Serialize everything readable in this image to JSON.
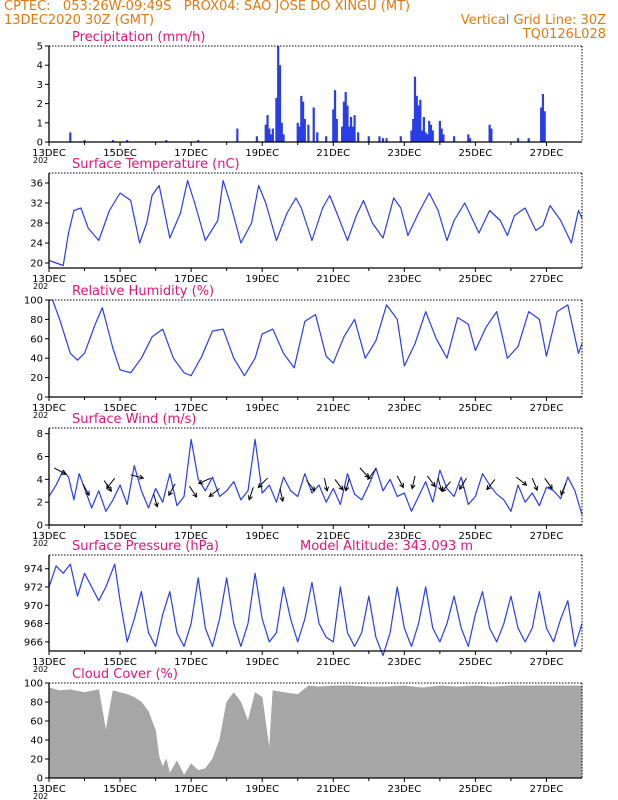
{
  "header": {
    "line1": "CPTEC:   053:26W-09:49S   PROX04: SAO JOSE DO XINGU (MT)",
    "line2_left": "13DEC2020 30Z (GMT)",
    "line2_right": "Vertical Grid Line: 30Z",
    "line3_right": "TQ0126L028"
  },
  "colors": {
    "header": "#e07a10",
    "panel_title": "#e0157a",
    "series": "#2a3ee8",
    "cloud": "#a6a6a6",
    "wind_arrow": "#000000"
  },
  "x_axis": {
    "range_days": [
      13,
      28
    ],
    "tick_labels": [
      "13DEC",
      "15DEC",
      "17DEC",
      "19DEC",
      "21DEC",
      "23DEC",
      "25DEC",
      "27DEC"
    ],
    "tick_days": [
      13,
      15,
      17,
      19,
      21,
      23,
      25,
      27
    ],
    "truncated_year": "202"
  },
  "chart_data": [
    {
      "type": "bar",
      "title": "Precipitation (mm/h)",
      "ylim": [
        0,
        5
      ],
      "yticks": [
        0,
        1,
        2,
        3,
        4,
        5
      ],
      "x": [
        13.6,
        14.0,
        14.8,
        15.2,
        16.3,
        17.2,
        18.3,
        18.85,
        19.1,
        19.15,
        19.2,
        19.25,
        19.3,
        19.4,
        19.45,
        19.5,
        19.55,
        19.6,
        20.0,
        20.05,
        20.1,
        20.15,
        20.2,
        20.3,
        20.45,
        20.55,
        20.8,
        21.0,
        21.05,
        21.1,
        21.25,
        21.3,
        21.35,
        21.4,
        21.45,
        21.5,
        21.55,
        21.6,
        21.7,
        22.0,
        22.3,
        22.4,
        22.5,
        22.9,
        23.2,
        23.25,
        23.3,
        23.35,
        23.4,
        23.45,
        23.5,
        23.55,
        23.6,
        23.65,
        23.7,
        23.75,
        23.8,
        24.0,
        24.05,
        24.1,
        24.4,
        24.8,
        24.85,
        25.4,
        25.45,
        26.2,
        26.5,
        26.85,
        26.9,
        26.95
      ],
      "values": [
        0.5,
        0.1,
        0.1,
        0.1,
        0.1,
        0.1,
        0.7,
        0.3,
        0.9,
        1.4,
        0.7,
        0.4,
        0.7,
        2.3,
        5.0,
        4.0,
        1.0,
        0.4,
        1.0,
        0.8,
        2.4,
        2.1,
        1.2,
        0.9,
        1.8,
        0.5,
        0.3,
        1.7,
        2.7,
        1.2,
        0.8,
        2.1,
        2.6,
        1.9,
        0.8,
        1.3,
        0.8,
        1.4,
        0.5,
        0.3,
        0.3,
        0.2,
        0.2,
        0.3,
        0.6,
        1.2,
        3.4,
        2.4,
        1.9,
        2.2,
        0.6,
        1.3,
        0.5,
        0.4,
        1.1,
        0.9,
        0.6,
        1.1,
        0.7,
        0.4,
        0.3,
        0.4,
        0.2,
        0.9,
        0.7,
        0.2,
        0.2,
        1.8,
        2.5,
        1.6
      ]
    },
    {
      "type": "line",
      "title": "Surface Temperature (nC)",
      "ylim": [
        19,
        38
      ],
      "yticks": [
        20,
        24,
        28,
        32,
        36
      ],
      "x": [
        13.0,
        13.2,
        13.4,
        13.55,
        13.7,
        13.9,
        14.1,
        14.4,
        14.7,
        15.0,
        15.3,
        15.55,
        15.75,
        15.9,
        16.1,
        16.4,
        16.7,
        16.9,
        17.1,
        17.4,
        17.75,
        17.9,
        18.1,
        18.4,
        18.7,
        18.9,
        19.1,
        19.4,
        19.7,
        19.95,
        20.1,
        20.4,
        20.7,
        20.9,
        21.1,
        21.4,
        21.65,
        21.85,
        22.1,
        22.4,
        22.7,
        22.9,
        23.1,
        23.4,
        23.7,
        23.95,
        24.2,
        24.4,
        24.7,
        24.9,
        25.1,
        25.4,
        25.7,
        25.9,
        26.1,
        26.4,
        26.7,
        26.9,
        27.1,
        27.4,
        27.7,
        27.9,
        28.0
      ],
      "values": [
        20.5,
        20.0,
        19.5,
        26.0,
        30.5,
        31.0,
        27.0,
        24.5,
        30.5,
        34.0,
        32.5,
        24.0,
        28.0,
        33.5,
        35.5,
        25.0,
        30.0,
        36.5,
        32.0,
        24.5,
        28.5,
        36.5,
        32.0,
        24.0,
        28.0,
        35.5,
        32.0,
        24.5,
        30.0,
        33.0,
        31.0,
        24.5,
        31.0,
        33.5,
        30.0,
        24.5,
        29.5,
        32.5,
        28.0,
        25.0,
        33.0,
        31.0,
        25.5,
        30.0,
        34.0,
        30.5,
        24.5,
        28.5,
        32.0,
        29.0,
        26.0,
        30.5,
        28.5,
        25.5,
        29.5,
        31.0,
        26.5,
        27.5,
        31.5,
        28.5,
        24.0,
        30.5,
        29.0
      ]
    },
    {
      "type": "line",
      "title": "Relative Humidity (%)",
      "ylim": [
        0,
        100
      ],
      "yticks": [
        0,
        20,
        40,
        60,
        80,
        100
      ],
      "x": [
        13.0,
        13.1,
        13.3,
        13.6,
        13.8,
        14.0,
        14.3,
        14.5,
        14.8,
        15.0,
        15.3,
        15.6,
        15.9,
        16.2,
        16.5,
        16.8,
        17.0,
        17.3,
        17.6,
        17.9,
        18.2,
        18.5,
        18.8,
        19.0,
        19.3,
        19.6,
        19.9,
        20.2,
        20.5,
        20.8,
        21.0,
        21.3,
        21.6,
        21.9,
        22.2,
        22.5,
        22.8,
        23.0,
        23.3,
        23.6,
        23.9,
        24.2,
        24.5,
        24.8,
        25.0,
        25.3,
        25.6,
        25.9,
        26.2,
        26.5,
        26.8,
        27.0,
        27.3,
        27.6,
        27.9,
        28.0
      ],
      "values": [
        100,
        100,
        80,
        45,
        38,
        45,
        75,
        92,
        50,
        28,
        25,
        40,
        62,
        70,
        40,
        25,
        22,
        42,
        68,
        70,
        40,
        22,
        40,
        65,
        70,
        45,
        30,
        78,
        85,
        42,
        35,
        62,
        80,
        40,
        58,
        95,
        80,
        32,
        55,
        88,
        60,
        40,
        82,
        75,
        48,
        72,
        88,
        40,
        52,
        88,
        80,
        42,
        88,
        95,
        45,
        55
      ]
    },
    {
      "type": "line",
      "title": "Surface Wind (m/s)",
      "ylim": [
        0,
        8.5
      ],
      "yticks": [
        0,
        2,
        4,
        6,
        8
      ],
      "x": [
        13.0,
        13.2,
        13.4,
        13.55,
        13.7,
        13.85,
        14.0,
        14.2,
        14.4,
        14.6,
        14.8,
        15.0,
        15.2,
        15.4,
        15.6,
        15.8,
        16.0,
        16.2,
        16.4,
        16.6,
        16.8,
        17.0,
        17.2,
        17.4,
        17.6,
        17.8,
        18.0,
        18.2,
        18.4,
        18.6,
        18.8,
        19.0,
        19.2,
        19.4,
        19.6,
        19.8,
        20.0,
        20.2,
        20.4,
        20.6,
        20.8,
        21.0,
        21.2,
        21.4,
        21.6,
        21.8,
        22.0,
        22.2,
        22.4,
        22.6,
        22.8,
        23.0,
        23.2,
        23.4,
        23.6,
        23.8,
        24.0,
        24.2,
        24.4,
        24.6,
        24.8,
        25.0,
        25.2,
        25.4,
        25.6,
        25.8,
        26.0,
        26.2,
        26.4,
        26.6,
        26.8,
        27.0,
        27.2,
        27.4,
        27.6,
        27.8,
        28.0
      ],
      "values": [
        2.5,
        3.5,
        4.8,
        4.2,
        2.2,
        4.5,
        3.2,
        1.5,
        3.0,
        1.2,
        2.2,
        3.5,
        1.8,
        5.2,
        3.0,
        1.5,
        3.2,
        2.0,
        4.5,
        1.7,
        2.5,
        7.5,
        4.0,
        3.0,
        4.2,
        2.5,
        3.0,
        3.8,
        2.2,
        3.0,
        7.5,
        2.8,
        3.5,
        2.0,
        4.2,
        3.0,
        2.5,
        4.5,
        2.8,
        3.5,
        2.0,
        3.2,
        1.8,
        4.5,
        2.7,
        2.2,
        3.5,
        5.0,
        3.0,
        4.0,
        2.5,
        2.8,
        1.2,
        2.5,
        3.8,
        2.0,
        4.8,
        3.2,
        2.5,
        4.2,
        1.8,
        2.5,
        4.5,
        3.5,
        2.7,
        2.2,
        1.2,
        3.5,
        2.0,
        2.8,
        1.7,
        3.3,
        3.0,
        2.3,
        4.2,
        3.0,
        0.9
      ],
      "arrows": [
        {
          "x": 13.15,
          "y": 5.0,
          "dx": 1.0,
          "dy": -0.55
        },
        {
          "x": 13.95,
          "y": 3.6,
          "dx": 0.45,
          "dy": -0.8
        },
        {
          "x": 14.55,
          "y": 3.9,
          "dx": 0.5,
          "dy": -0.75
        },
        {
          "x": 14.85,
          "y": 4.1,
          "dx": -0.55,
          "dy": -0.7
        },
        {
          "x": 15.3,
          "y": 4.4,
          "dx": 0.95,
          "dy": -0.25
        },
        {
          "x": 15.95,
          "y": 2.7,
          "dx": 0.25,
          "dy": -0.9
        },
        {
          "x": 16.55,
          "y": 3.6,
          "dx": -0.45,
          "dy": -0.8
        },
        {
          "x": 16.95,
          "y": 3.4,
          "dx": 0.5,
          "dy": -0.75
        },
        {
          "x": 17.55,
          "y": 4.1,
          "dx": -0.9,
          "dy": -0.4
        },
        {
          "x": 17.8,
          "y": 3.2,
          "dx": -0.7,
          "dy": -0.55
        },
        {
          "x": 18.75,
          "y": 3.3,
          "dx": -0.3,
          "dy": -0.9
        },
        {
          "x": 19.15,
          "y": 4.1,
          "dx": -0.65,
          "dy": -0.65
        },
        {
          "x": 19.5,
          "y": 3.2,
          "dx": 0.2,
          "dy": -0.9
        },
        {
          "x": 20.25,
          "y": 3.9,
          "dx": 0.55,
          "dy": -0.7
        },
        {
          "x": 20.75,
          "y": 4.1,
          "dx": 0.2,
          "dy": -0.9
        },
        {
          "x": 21.05,
          "y": 4.0,
          "dx": 0.55,
          "dy": -0.75
        },
        {
          "x": 21.45,
          "y": 4.1,
          "dx": -0.25,
          "dy": -0.9
        },
        {
          "x": 21.75,
          "y": 5.0,
          "dx": 0.6,
          "dy": -0.65
        },
        {
          "x": 22.2,
          "y": 4.9,
          "dx": -0.6,
          "dy": -0.75
        },
        {
          "x": 22.8,
          "y": 4.3,
          "dx": 0.45,
          "dy": -0.85
        },
        {
          "x": 23.3,
          "y": 4.3,
          "dx": -0.2,
          "dy": -0.9
        },
        {
          "x": 23.65,
          "y": 4.3,
          "dx": 0.5,
          "dy": -0.7
        },
        {
          "x": 23.95,
          "y": 4.1,
          "dx": 0.25,
          "dy": -0.9
        },
        {
          "x": 24.3,
          "y": 3.8,
          "dx": -0.6,
          "dy": -0.7
        },
        {
          "x": 24.75,
          "y": 4.1,
          "dx": -0.5,
          "dy": -0.8
        },
        {
          "x": 25.55,
          "y": 4.0,
          "dx": -0.55,
          "dy": -0.7
        },
        {
          "x": 26.15,
          "y": 4.2,
          "dx": 0.7,
          "dy": -0.55
        },
        {
          "x": 26.6,
          "y": 4.1,
          "dx": 0.35,
          "dy": -0.85
        },
        {
          "x": 26.95,
          "y": 4.1,
          "dx": 0.5,
          "dy": -0.7
        },
        {
          "x": 27.55,
          "y": 3.7,
          "dx": -0.35,
          "dy": -0.85
        }
      ]
    },
    {
      "type": "line",
      "title": "Surface Pressure (hPa)",
      "annotation": "Model Altitude: 343.093 m",
      "ylim": [
        965,
        975.5
      ],
      "yticks": [
        966,
        968,
        970,
        972,
        974
      ],
      "x": [
        13.0,
        13.2,
        13.4,
        13.6,
        13.8,
        14.0,
        14.2,
        14.4,
        14.6,
        14.85,
        15.0,
        15.2,
        15.4,
        15.6,
        15.8,
        16.0,
        16.2,
        16.4,
        16.6,
        16.8,
        17.0,
        17.2,
        17.4,
        17.6,
        17.8,
        18.0,
        18.2,
        18.4,
        18.6,
        18.8,
        19.0,
        19.2,
        19.4,
        19.6,
        19.8,
        20.0,
        20.2,
        20.4,
        20.6,
        20.8,
        21.0,
        21.2,
        21.4,
        21.6,
        21.8,
        22.0,
        22.2,
        22.4,
        22.6,
        22.8,
        23.0,
        23.2,
        23.4,
        23.6,
        23.8,
        24.0,
        24.2,
        24.4,
        24.6,
        24.8,
        25.0,
        25.2,
        25.4,
        25.6,
        25.8,
        26.0,
        26.2,
        26.4,
        26.6,
        26.8,
        27.0,
        27.2,
        27.4,
        27.6,
        27.8,
        28.0
      ],
      "values": [
        972.0,
        974.3,
        973.5,
        974.5,
        971.0,
        973.5,
        972.0,
        970.5,
        972.0,
        974.5,
        970.5,
        966.0,
        968.5,
        971.5,
        967.0,
        965.5,
        969.0,
        971.5,
        967.0,
        965.5,
        968.0,
        973.0,
        967.5,
        965.5,
        968.5,
        973.0,
        968.0,
        965.5,
        968.0,
        973.5,
        968.5,
        966.0,
        967.0,
        972.0,
        968.5,
        966.0,
        968.5,
        972.5,
        968.0,
        966.5,
        966.0,
        972.0,
        967.0,
        965.5,
        967.0,
        971.0,
        966.5,
        964.5,
        967.0,
        972.0,
        967.5,
        965.5,
        968.0,
        972.0,
        967.5,
        966.0,
        968.0,
        971.0,
        967.5,
        965.5,
        969.0,
        971.5,
        967.5,
        966.0,
        968.0,
        971.0,
        967.5,
        966.0,
        967.5,
        971.5,
        967.5,
        966.0,
        968.5,
        970.5,
        965.5,
        968.0
      ]
    },
    {
      "type": "area",
      "title": "Cloud Cover (%)",
      "ylim": [
        0,
        100
      ],
      "yticks": [
        0,
        20,
        40,
        60,
        80,
        100
      ],
      "x": [
        13.0,
        13.3,
        13.6,
        14.0,
        14.4,
        14.6,
        14.8,
        15.0,
        15.2,
        15.4,
        15.6,
        15.8,
        16.0,
        16.1,
        16.2,
        16.3,
        16.4,
        16.6,
        16.8,
        17.0,
        17.2,
        17.4,
        17.6,
        17.8,
        18.0,
        18.2,
        18.4,
        18.6,
        18.8,
        19.0,
        19.2,
        19.3,
        19.6,
        20.0,
        20.3,
        20.6,
        21.0,
        21.5,
        22.0,
        22.5,
        23.0,
        23.5,
        24.0,
        24.5,
        25.0,
        25.5,
        26.0,
        26.5,
        27.0,
        27.5,
        28.0
      ],
      "values": [
        95,
        92,
        93,
        90,
        93,
        50,
        92,
        90,
        88,
        85,
        80,
        70,
        50,
        22,
        12,
        20,
        5,
        18,
        3,
        15,
        8,
        10,
        20,
        40,
        80,
        90,
        80,
        60,
        90,
        85,
        30,
        92,
        90,
        88,
        97,
        96,
        97,
        97,
        96,
        96,
        97,
        95,
        97,
        96,
        97,
        96,
        97,
        97,
        97,
        97,
        97
      ]
    }
  ]
}
